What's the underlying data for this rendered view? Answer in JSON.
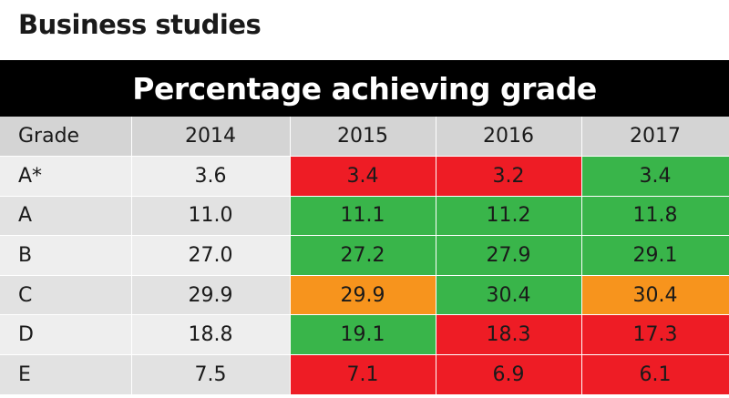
{
  "title": "Business studies",
  "banner": "Percentage achieving grade",
  "colors": {
    "red": "#ee1c25",
    "green": "#39b54a",
    "orange": "#f7941d",
    "banner": "#000000"
  },
  "chart_data": {
    "type": "table",
    "columns": [
      "Grade",
      "2014",
      "2015",
      "2016",
      "2017"
    ],
    "rows": [
      {
        "grade": "A*",
        "values": [
          "3.6",
          "3.4",
          "3.2",
          "3.4"
        ],
        "colors": [
          null,
          "red",
          "red",
          "green"
        ]
      },
      {
        "grade": "A",
        "values": [
          "11.0",
          "11.1",
          "11.2",
          "11.8"
        ],
        "colors": [
          null,
          "green",
          "green",
          "green"
        ]
      },
      {
        "grade": "B",
        "values": [
          "27.0",
          "27.2",
          "27.9",
          "29.1"
        ],
        "colors": [
          null,
          "green",
          "green",
          "green"
        ]
      },
      {
        "grade": "C",
        "values": [
          "29.9",
          "29.9",
          "30.4",
          "30.4"
        ],
        "colors": [
          null,
          "orange",
          "green",
          "orange"
        ]
      },
      {
        "grade": "D",
        "values": [
          "18.8",
          "19.1",
          "18.3",
          "17.3"
        ],
        "colors": [
          null,
          "green",
          "red",
          "red"
        ]
      },
      {
        "grade": "E",
        "values": [
          "7.5",
          "7.1",
          "6.9",
          "6.1"
        ],
        "colors": [
          null,
          "red",
          "red",
          "red"
        ]
      }
    ]
  }
}
